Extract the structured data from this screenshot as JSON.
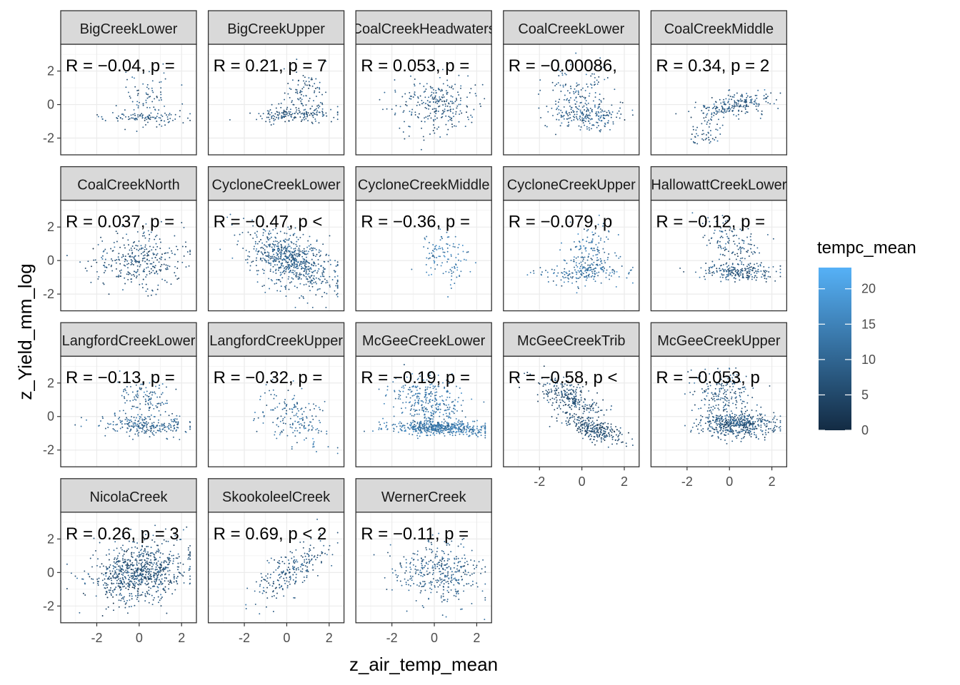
{
  "chart_data": {
    "type": "scatter",
    "title": "",
    "xlabel": "z_air_temp_mean",
    "ylabel": "z_Yield_mm_log",
    "xlim": [
      -3.7,
      2.7
    ],
    "ylim": [
      -3.0,
      3.6
    ],
    "x_ticks": [
      -2,
      0,
      2
    ],
    "y_ticks": [
      -2,
      0,
      2
    ],
    "tick_labels": {
      "x": [
        "-2",
        "0",
        "2"
      ],
      "y": [
        "-2",
        "0",
        "2"
      ]
    },
    "grid": true,
    "color_variable": "tempc_mean",
    "legend": {
      "title": "tempc_mean",
      "placement": "right",
      "min": 0,
      "max": 23,
      "breaks": [
        0,
        5,
        10,
        15,
        20
      ],
      "break_labels": [
        "0",
        "5",
        "10",
        "15",
        "20"
      ],
      "low_color": "#132B43",
      "high_color": "#56B1F7"
    },
    "panels": [
      {
        "name": "BigCreekLower",
        "strip": "BigCreekLower",
        "label": "R = −0.04, p =",
        "r": -0.04,
        "n": 170,
        "xmean": 0.3,
        "xsd": 1.0,
        "color_mean": 8,
        "clusters": [
          {
            "w": 0.55,
            "x": 0.5,
            "y": -0.75,
            "sx": 0.9,
            "sy": 0.15
          },
          {
            "w": 0.45,
            "x": 0.6,
            "y": 0.3,
            "sx": 0.6,
            "sy": 0.9
          }
        ]
      },
      {
        "name": "BigCreekUpper",
        "strip": "BigCreekUpper",
        "label": "R = 0.21, p = 7",
        "r": 0.21,
        "n": 260,
        "xmean": 0.3,
        "xsd": 1.0,
        "color_mean": 7,
        "clusters": [
          {
            "w": 0.6,
            "x": 0.3,
            "y": -0.6,
            "sx": 1.0,
            "sy": 0.25
          },
          {
            "w": 0.4,
            "x": 0.8,
            "y": 0.6,
            "sx": 0.5,
            "sy": 0.8
          }
        ]
      },
      {
        "name": "CoalCreekHeadwaters",
        "strip": "CoalCreekHeadwaters",
        "label": "R = 0.053, p =",
        "r": 0.053,
        "n": 260,
        "xmean": 0.2,
        "xsd": 1.0,
        "color_mean": 8,
        "clusters": [
          {
            "w": 1.0,
            "x": 0.2,
            "y": 0.0,
            "sx": 1.0,
            "sy": 0.85
          }
        ]
      },
      {
        "name": "CoalCreekLower",
        "strip": "CoalCreekLower",
        "label": "R = −0.00086,",
        "r": -0.00086,
        "n": 320,
        "xmean": 0.1,
        "xsd": 1.0,
        "color_mean": 9,
        "clusters": [
          {
            "w": 0.6,
            "x": 0.3,
            "y": -0.7,
            "sx": 0.9,
            "sy": 0.35
          },
          {
            "w": 0.4,
            "x": -0.3,
            "y": 0.6,
            "sx": 0.8,
            "sy": 0.9
          }
        ]
      },
      {
        "name": "CoalCreekMiddle",
        "strip": "CoalCreekMiddle",
        "label": "R = 0.34, p = 2",
        "r": 0.34,
        "n": 260,
        "xmean": 0.2,
        "xsd": 0.9,
        "color_mean": 8,
        "clusters": [
          {
            "w": 0.7,
            "x": 0.3,
            "y": 0.0,
            "sx": 0.9,
            "sy": 0.4
          },
          {
            "w": 0.3,
            "x": -1.0,
            "y": -1.4,
            "sx": 0.4,
            "sy": 0.6
          }
        ]
      },
      {
        "name": "CoalCreekNorth",
        "strip": "CoalCreekNorth",
        "label": "R = 0.037, p =",
        "r": 0.037,
        "n": 320,
        "xmean": 0.0,
        "xsd": 1.1,
        "color_mean": 7,
        "clusters": [
          {
            "w": 1.0,
            "x": 0.0,
            "y": 0.0,
            "sx": 1.1,
            "sy": 0.85
          }
        ]
      },
      {
        "name": "CycloneCreekLower",
        "strip": "CycloneCreekLower",
        "label": "R = −0.47, p <",
        "r": -0.47,
        "n": 700,
        "xmean": 0.2,
        "xsd": 1.0,
        "color_mean": 9,
        "clusters": [
          {
            "w": 1.0,
            "x": 0.2,
            "y": 0.0,
            "sx": 1.0,
            "sy": 0.9
          }
        ]
      },
      {
        "name": "CycloneCreekMiddle",
        "strip": "CycloneCreekMiddle",
        "label": "R = −0.36, p =",
        "r": -0.36,
        "n": 110,
        "xmean": 0.5,
        "xsd": 0.6,
        "color_mean": 14,
        "clusters": [
          {
            "w": 1.0,
            "x": 0.5,
            "y": 0.2,
            "sx": 0.6,
            "sy": 0.8
          }
        ]
      },
      {
        "name": "CycloneCreekUpper",
        "strip": "CycloneCreekUpper",
        "label": "R = −0.079, p",
        "r": -0.079,
        "n": 300,
        "xmean": 0.3,
        "xsd": 0.9,
        "color_mean": 12,
        "clusters": [
          {
            "w": 0.5,
            "x": 0.0,
            "y": -0.7,
            "sx": 1.1,
            "sy": 0.3
          },
          {
            "w": 0.5,
            "x": 0.4,
            "y": 0.5,
            "sx": 0.6,
            "sy": 0.9
          }
        ]
      },
      {
        "name": "HallowattCreekLower",
        "strip": "HallowattCreekLower",
        "label": "R = −0.12, p =",
        "r": -0.12,
        "n": 340,
        "xmean": 0.2,
        "xsd": 1.0,
        "color_mean": 8,
        "clusters": [
          {
            "w": 0.6,
            "x": 0.4,
            "y": -0.7,
            "sx": 0.9,
            "sy": 0.25
          },
          {
            "w": 0.4,
            "x": 0.0,
            "y": 1.0,
            "sx": 0.7,
            "sy": 0.8
          }
        ]
      },
      {
        "name": "LangfordCreekLower",
        "strip": "LangfordCreekLower",
        "label": "R = −0.13, p =",
        "r": -0.13,
        "n": 350,
        "xmean": 0.3,
        "xsd": 1.0,
        "color_mean": 10,
        "clusters": [
          {
            "w": 0.7,
            "x": 0.3,
            "y": -0.5,
            "sx": 1.0,
            "sy": 0.35
          },
          {
            "w": 0.3,
            "x": 0.2,
            "y": 1.2,
            "sx": 0.6,
            "sy": 0.6
          }
        ]
      },
      {
        "name": "LangfordCreekUpper",
        "strip": "LangfordCreekUpper",
        "label": "R = −0.32, p =",
        "r": -0.32,
        "n": 170,
        "xmean": 0.3,
        "xsd": 0.9,
        "color_mean": 11,
        "clusters": [
          {
            "w": 1.0,
            "x": 0.3,
            "y": 0.0,
            "sx": 0.9,
            "sy": 0.8
          }
        ]
      },
      {
        "name": "McGeeCreekLower",
        "strip": "McGeeCreekLower",
        "label": "R = −0.19, p =",
        "r": -0.19,
        "n": 800,
        "xmean": 0.2,
        "xsd": 1.0,
        "color_mean": 13,
        "clusters": [
          {
            "w": 0.6,
            "x": 0.3,
            "y": -0.7,
            "sx": 1.1,
            "sy": 0.2
          },
          {
            "w": 0.4,
            "x": -0.2,
            "y": 0.8,
            "sx": 0.8,
            "sy": 0.8
          }
        ]
      },
      {
        "name": "McGeeCreekTrib",
        "strip": "McGeeCreekTrib",
        "label": "R = −0.58, p <",
        "r": -0.58,
        "n": 520,
        "xmean": 0.0,
        "xsd": 1.0,
        "color_mean": 6,
        "clusters": [
          {
            "w": 0.5,
            "x": 0.5,
            "y": -0.7,
            "sx": 0.7,
            "sy": 0.4
          },
          {
            "w": 0.5,
            "x": -0.6,
            "y": 1.1,
            "sx": 0.8,
            "sy": 0.6
          }
        ]
      },
      {
        "name": "McGeeCreekUpper",
        "strip": "McGeeCreekUpper",
        "label": "R = −0.053, p",
        "r": -0.053,
        "n": 700,
        "xmean": 0.2,
        "xsd": 1.0,
        "color_mean": 8,
        "clusters": [
          {
            "w": 0.65,
            "x": 0.4,
            "y": -0.5,
            "sx": 0.9,
            "sy": 0.35
          },
          {
            "w": 0.35,
            "x": -0.3,
            "y": 1.2,
            "sx": 0.7,
            "sy": 0.9
          }
        ]
      },
      {
        "name": "NicolaCreek",
        "strip": "NicolaCreek",
        "label": "R = 0.26, p = 3",
        "r": 0.26,
        "n": 800,
        "xmean": 0.0,
        "xsd": 1.1,
        "color_mean": 7,
        "clusters": [
          {
            "w": 1.0,
            "x": 0.0,
            "y": 0.0,
            "sx": 1.1,
            "sy": 0.9
          }
        ]
      },
      {
        "name": "SkookoleelCreek",
        "strip": "SkookoleelCreek",
        "label": "R = 0.69, p < 2",
        "r": 0.69,
        "n": 220,
        "xmean": 0.2,
        "xsd": 0.9,
        "color_mean": 8,
        "clusters": [
          {
            "w": 1.0,
            "x": 0.2,
            "y": 0.1,
            "sx": 0.9,
            "sy": 0.9
          }
        ]
      },
      {
        "name": "WernerCreek",
        "strip": "WernerCreek",
        "label": "R = −0.11, p =",
        "r": -0.11,
        "n": 360,
        "xmean": 0.3,
        "xsd": 1.0,
        "color_mean": 9,
        "clusters": [
          {
            "w": 1.0,
            "x": 0.3,
            "y": 0.0,
            "sx": 1.0,
            "sy": 0.85
          }
        ]
      }
    ]
  }
}
